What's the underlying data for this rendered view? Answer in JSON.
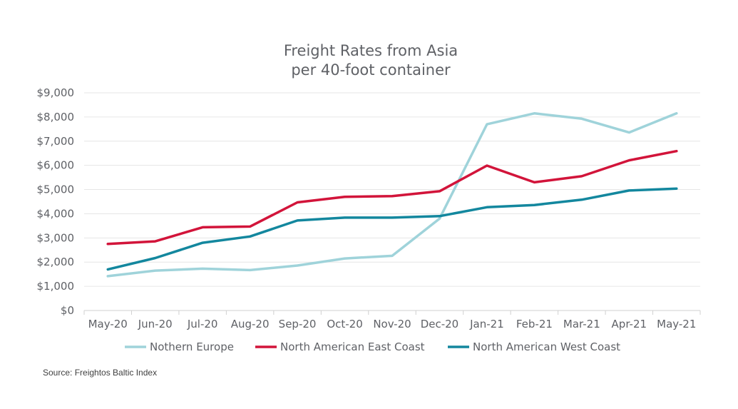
{
  "chart_data": {
    "type": "line",
    "title": "Freight Rates from Asia",
    "subtitle": "per 40-foot container",
    "xlabel": "",
    "ylabel": "",
    "categories": [
      "May-20",
      "Jun-20",
      "Jul-20",
      "Aug-20",
      "Sep-20",
      "Oct-20",
      "Nov-20",
      "Dec-20",
      "Jan-21",
      "Feb-21",
      "Mar-21",
      "Apr-21",
      "May-21"
    ],
    "ylim": [
      0,
      9000
    ],
    "yticks": [
      0,
      1000,
      2000,
      3000,
      4000,
      5000,
      6000,
      7000,
      8000,
      9000
    ],
    "ytick_labels": [
      "$0",
      "$1,000",
      "$2,000",
      "$3,000",
      "$4,000",
      "$5,000",
      "$6,000",
      "$7,000",
      "$8,000",
      "$9,000"
    ],
    "grid": true,
    "legend_position": "bottom",
    "series": [
      {
        "name": "Nothern Europe",
        "color": "#9fd3da",
        "values": [
          1420,
          1650,
          1730,
          1670,
          1860,
          2150,
          2260,
          3800,
          7700,
          8150,
          7930,
          7360,
          8150
        ]
      },
      {
        "name": "North American East Coast",
        "color": "#d2143a",
        "values": [
          2750,
          2860,
          3440,
          3470,
          4470,
          4700,
          4730,
          4930,
          5990,
          5300,
          5550,
          6210,
          6590
        ]
      },
      {
        "name": "North American West Coast",
        "color": "#13879e",
        "values": [
          1700,
          2170,
          2800,
          3060,
          3720,
          3840,
          3840,
          3900,
          4270,
          4360,
          4580,
          4960,
          5040
        ]
      }
    ],
    "source": "Source: Freightos Baltic Index"
  }
}
